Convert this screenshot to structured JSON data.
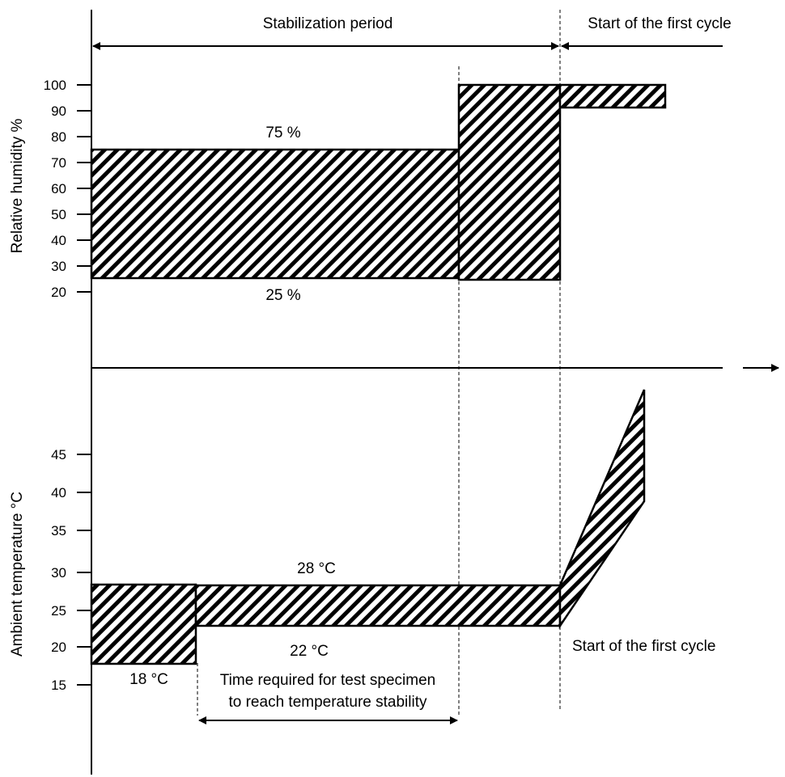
{
  "header": {
    "stabilization_period": "Stabilization period",
    "first_cycle_top": "Start of the first cycle"
  },
  "humidity_axis": {
    "title": "Relative humidity  %",
    "ticks": [
      "100",
      "90",
      "80",
      "70",
      "60",
      "50",
      "40",
      "30",
      "20"
    ]
  },
  "temperature_axis": {
    "title": "Ambient temperature  °C",
    "ticks": [
      "45",
      "40",
      "35",
      "30",
      "25",
      "20",
      "15"
    ]
  },
  "humidity_labels": {
    "upper": "75 %",
    "lower": "25 %"
  },
  "temperature_labels": {
    "upper": "28 °C",
    "lower": "22 °C",
    "start_low": "18 °C",
    "first_cycle": "Start of the first cycle"
  },
  "stability_note": {
    "line1": "Time required for test specimen",
    "line2": "to reach temperature stability"
  },
  "colors": {
    "ink": "#000000",
    "background": "#ffffff"
  }
}
